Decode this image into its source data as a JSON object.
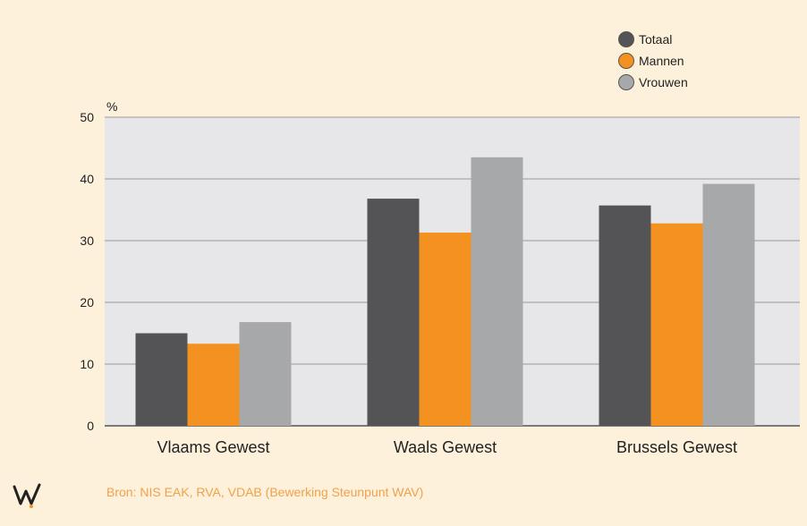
{
  "chart_data": {
    "type": "bar",
    "ylabel": "%",
    "ylim": [
      0,
      50
    ],
    "yticks": [
      0,
      10,
      20,
      30,
      40,
      50
    ],
    "categories": [
      "Vlaams Gewest",
      "Waals Gewest",
      "Brussels Gewest"
    ],
    "series": [
      {
        "name": "Totaal",
        "color": "#545456",
        "values": [
          15.0,
          36.8,
          35.7
        ]
      },
      {
        "name": "Mannen",
        "color": "#f39220",
        "values": [
          13.3,
          31.3,
          32.8
        ]
      },
      {
        "name": "Vrouwen",
        "color": "#a7a8aa",
        "values": [
          16.8,
          43.5,
          39.2
        ]
      }
    ],
    "grid": true,
    "legend_position": "top-right",
    "plot_background": "#e7e7e9"
  },
  "source": "Bron: NIS EAK, RVA, VDAB  (Bewerking Steunpunt WAV)",
  "logo_icon": "wav-logo-icon"
}
